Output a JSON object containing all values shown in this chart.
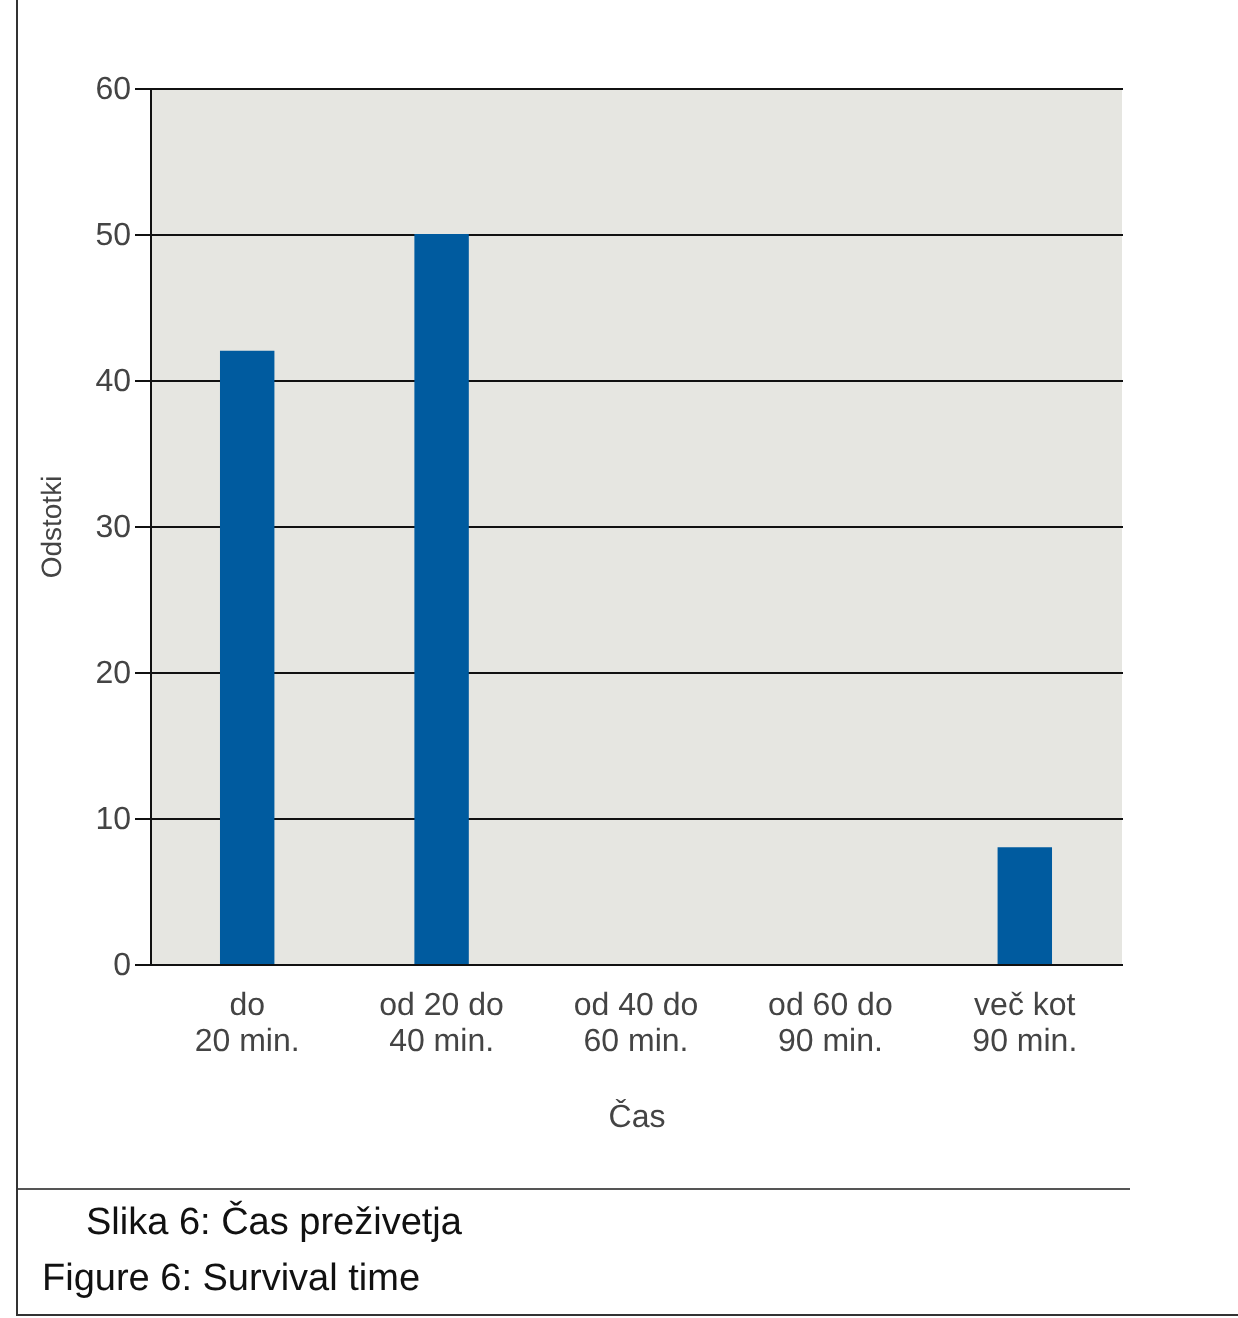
{
  "chart_data": {
    "type": "bar",
    "categories": [
      "do 20 min.",
      "od 20 do 40 min.",
      "od 40 do 60 min.",
      "od 60 do 90 min.",
      "več kot 90 min."
    ],
    "values": [
      42,
      50,
      0,
      0,
      8
    ],
    "color": "#005b9f",
    "xlabel": "Čas",
    "ylabel": "Odstotki",
    "ylim": [
      0,
      60
    ],
    "yticks": [
      0,
      10,
      20,
      30,
      40,
      50,
      60
    ],
    "grid": "y",
    "annotations": [
      "Slika 6: Čas preživetja",
      "Figure 6: Survival time"
    ]
  }
}
